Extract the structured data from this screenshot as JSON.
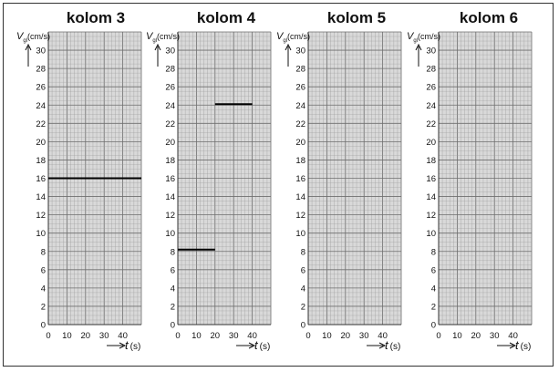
{
  "chart_data": [
    {
      "type": "line",
      "title": "kolom 3",
      "ylabel_main": "V",
      "ylabel_sub": "gl",
      "ylabel_unit": "(cm/s)",
      "xlabel_symbol": "t",
      "xlabel_unit": "(s)",
      "xlim": [
        0,
        50
      ],
      "ylim": [
        0,
        32
      ],
      "x_ticks": [
        "0",
        "10",
        "20",
        "30",
        "40"
      ],
      "y_ticks": [
        "0",
        "2",
        "4",
        "6",
        "8",
        "10",
        "12",
        "14",
        "16",
        "18",
        "20",
        "22",
        "24",
        "26",
        "28",
        "30"
      ],
      "grid": true,
      "series": [
        {
          "x": [
            0,
            50
          ],
          "y": [
            16,
            16
          ]
        }
      ]
    },
    {
      "type": "line",
      "title": "kolom 4",
      "ylabel_main": "V",
      "ylabel_sub": "gl",
      "ylabel_unit": "(cm/s)",
      "xlabel_symbol": "t",
      "xlabel_unit": "(s)",
      "xlim": [
        0,
        50
      ],
      "ylim": [
        0,
        32
      ],
      "x_ticks": [
        "0",
        "10",
        "20",
        "30",
        "40"
      ],
      "y_ticks": [
        "0",
        "2",
        "4",
        "6",
        "8",
        "10",
        "12",
        "14",
        "16",
        "18",
        "20",
        "22",
        "24",
        "26",
        "28",
        "30"
      ],
      "grid": true,
      "series": [
        {
          "x": [
            0,
            20
          ],
          "y": [
            8.2,
            8.2
          ]
        },
        {
          "x": [
            20,
            40
          ],
          "y": [
            24.1,
            24.1
          ]
        }
      ]
    },
    {
      "type": "line",
      "title": "kolom 5",
      "ylabel_main": "V",
      "ylabel_sub": "gl",
      "ylabel_unit": "(cm/s)",
      "xlabel_symbol": "t",
      "xlabel_unit": "(s)",
      "xlim": [
        0,
        50
      ],
      "ylim": [
        0,
        32
      ],
      "x_ticks": [
        "0",
        "10",
        "20",
        "30",
        "40"
      ],
      "y_ticks": [
        "0",
        "2",
        "4",
        "6",
        "8",
        "10",
        "12",
        "14",
        "16",
        "18",
        "20",
        "22",
        "24",
        "26",
        "28",
        "30"
      ],
      "grid": true,
      "series": []
    },
    {
      "type": "line",
      "title": "kolom 6",
      "ylabel_main": "V",
      "ylabel_sub": "gl",
      "ylabel_unit": "(cm/s)",
      "xlabel_symbol": "t",
      "xlabel_unit": "(s)",
      "xlim": [
        0,
        50
      ],
      "ylim": [
        0,
        32
      ],
      "x_ticks": [
        "0",
        "10",
        "20",
        "30",
        "40"
      ],
      "y_ticks": [
        "0",
        "2",
        "4",
        "6",
        "8",
        "10",
        "12",
        "14",
        "16",
        "18",
        "20",
        "22",
        "24",
        "26",
        "28",
        "30"
      ],
      "grid": true,
      "series": []
    }
  ],
  "colors": {
    "grid_fill": "#d9d9d9",
    "grid_minor": "#9a9a9a",
    "grid_major": "#6e6e6e",
    "line": "#000000",
    "text": "#111111"
  }
}
